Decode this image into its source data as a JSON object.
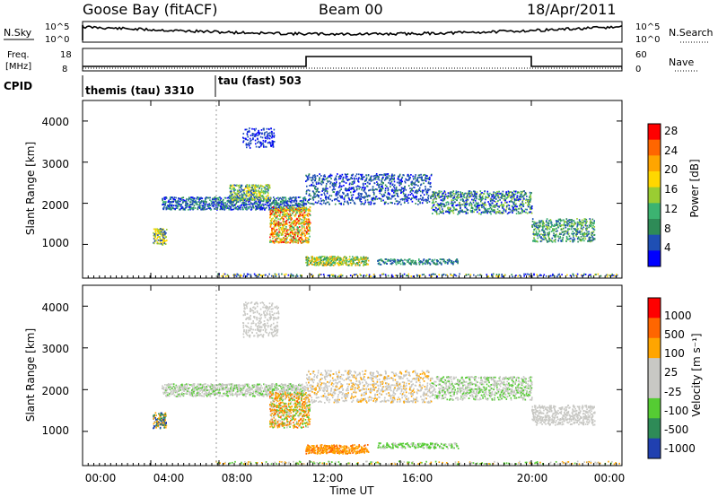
{
  "header": {
    "radar": "Goose Bay (fitACF)",
    "beam": "Beam 00",
    "date": "18/Apr/2011"
  },
  "nsky": {
    "label": "N.Sky",
    "ticks": [
      "10^5",
      "10^0"
    ],
    "right_label": "N.Search",
    "right_ticks": [
      "10^5",
      "10^0"
    ]
  },
  "freq": {
    "label_line1": "Freq.",
    "label_line2": "[MHz]",
    "ticks": [
      "18",
      "8"
    ],
    "right_label": "Nave",
    "right_ticks": [
      "60",
      "0"
    ]
  },
  "cpid": {
    "label": "CPID",
    "modes": [
      "themis (tau) 3310",
      "tau (fast) 503"
    ]
  },
  "chart_data": [
    {
      "type": "heatmap",
      "title": "",
      "ylabel": "Slant Range [km]",
      "xlabel": "",
      "x_range": [
        "00:00",
        "24:00"
      ],
      "ylim": [
        180,
        4500
      ],
      "yticks": [
        "4000",
        "3000",
        "2000",
        "1000"
      ],
      "colorbar_label": "Power [dB]",
      "colorbar_ticks": [
        "28",
        "24",
        "20",
        "16",
        "12",
        "8",
        "4"
      ],
      "colors": [
        "#0000ff",
        "#1f4fb4",
        "#2e8b57",
        "#3cb371",
        "#9acd32",
        "#ffd700",
        "#ffa500",
        "#ff6600",
        "#ff0000"
      ]
    },
    {
      "type": "heatmap",
      "title": "",
      "ylabel": "Slant Range [km]",
      "xlabel": "Time UT",
      "x_range": [
        "00:00",
        "24:00"
      ],
      "ylim": [
        180,
        4500
      ],
      "yticks": [
        "4000",
        "3000",
        "2000",
        "1000"
      ],
      "xticks": [
        "00:00",
        "04:00",
        "08:00",
        "12:00",
        "16:00",
        "20:00",
        "00:00"
      ],
      "colorbar_label": "Velocity [m s⁻¹]",
      "colorbar_ticks": [
        "1000",
        "500",
        "100",
        "25",
        "-25",
        "-100",
        "-500",
        "-1000"
      ],
      "colors": [
        "#2040b0",
        "#2e8b57",
        "#55cc33",
        "#c8c8c4",
        "#c8c8c4",
        "#ffa500",
        "#ff6600",
        "#ff0000"
      ]
    }
  ]
}
